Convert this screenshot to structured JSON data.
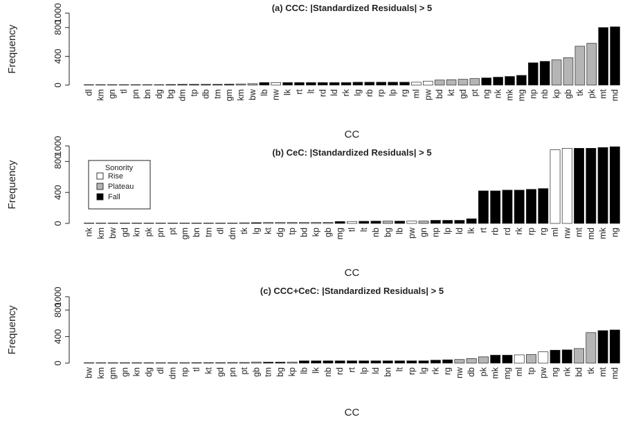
{
  "colors": {
    "Rise": "#ffffff",
    "Plateau": "#b5b5b5",
    "Fall": "#000000"
  },
  "legend": {
    "title": "Sonority",
    "entries": [
      "Rise",
      "Plateau",
      "Fall"
    ]
  },
  "chart_data": [
    {
      "type": "bar",
      "title": "(a) CCC: |Standardized Residuals| > 5",
      "xlabel": "CC",
      "ylabel": "Frequency",
      "ylim": [
        0,
        1000
      ],
      "yticks": [
        0,
        400,
        800,
        1000
      ],
      "grid": false,
      "categories": [
        "dl",
        "km",
        "gn",
        "tl",
        "pn",
        "bn",
        "dg",
        "bg",
        "dm",
        "tp",
        "db",
        "tm",
        "gm",
        "km",
        "bw",
        "lb",
        "nw",
        "lk",
        "rt",
        "lt",
        "rd",
        "ld",
        "rk",
        "lg",
        "rb",
        "rp",
        "lp",
        "rg",
        "ml",
        "pw",
        "bd",
        "kt",
        "gd",
        "pt",
        "ng",
        "nk",
        "mk",
        "mg",
        "np",
        "nb",
        "kp",
        "gb",
        "tk",
        "pk",
        "mt",
        "md"
      ],
      "sonority": [
        "Plateau",
        "Plateau",
        "Plateau",
        "Plateau",
        "Plateau",
        "Plateau",
        "Plateau",
        "Fall",
        "Fall",
        "Fall",
        "Fall",
        "Fall",
        "Fall",
        "Plateau",
        "Plateau",
        "Fall",
        "Rise",
        "Fall",
        "Fall",
        "Fall",
        "Fall",
        "Fall",
        "Fall",
        "Fall",
        "Fall",
        "Fall",
        "Fall",
        "Fall",
        "Rise",
        "Rise",
        "Plateau",
        "Plateau",
        "Plateau",
        "Plateau",
        "Fall",
        "Fall",
        "Fall",
        "Fall",
        "Fall",
        "Fall",
        "Plateau",
        "Plateau",
        "Plateau",
        "Plateau",
        "Fall",
        "Fall"
      ],
      "values": [
        1,
        1,
        1,
        1,
        1,
        1,
        2,
        8,
        10,
        10,
        10,
        10,
        12,
        15,
        20,
        35,
        35,
        35,
        35,
        35,
        35,
        35,
        35,
        40,
        40,
        40,
        40,
        40,
        40,
        55,
        70,
        75,
        80,
        90,
        100,
        110,
        120,
        135,
        310,
        330,
        350,
        380,
        540,
        580,
        800,
        810
      ]
    },
    {
      "type": "bar",
      "title": "(b) CeC: |Standardized Residuals| > 5",
      "xlabel": "CC",
      "ylabel": "Frequency",
      "ylim": [
        0,
        1000
      ],
      "yticks": [
        0,
        400,
        800,
        1000
      ],
      "grid": false,
      "legend_position": "top-left",
      "categories": [
        "nk",
        "km",
        "bw",
        "gd",
        "kn",
        "pk",
        "pn",
        "pt",
        "gm",
        "bn",
        "tm",
        "dl",
        "dm",
        "tk",
        "lg",
        "kt",
        "dg",
        "tp",
        "bd",
        "kp",
        "gb",
        "mg",
        "tl",
        "lt",
        "nb",
        "bg",
        "lb",
        "pw",
        "gn",
        "np",
        "lp",
        "ld",
        "lk",
        "rt",
        "rb",
        "rd",
        "rk",
        "rp",
        "rg",
        "ml",
        "nw",
        "mt",
        "md",
        "mk",
        "ng"
      ],
      "sonority": [
        "Plateau",
        "Plateau",
        "Plateau",
        "Plateau",
        "Plateau",
        "Plateau",
        "Plateau",
        "Plateau",
        "Plateau",
        "Plateau",
        "Fall",
        "Fall",
        "Fall",
        "Plateau",
        "Fall",
        "Plateau",
        "Plateau",
        "Plateau",
        "Plateau",
        "Plateau",
        "Plateau",
        "Fall",
        "Rise",
        "Fall",
        "Fall",
        "Plateau",
        "Fall",
        "Rise",
        "Plateau",
        "Fall",
        "Fall",
        "Fall",
        "Fall",
        "Fall",
        "Fall",
        "Fall",
        "Fall",
        "Fall",
        "Fall",
        "Rise",
        "Rise",
        "Fall",
        "Fall",
        "Fall",
        "Fall"
      ],
      "values": [
        1,
        1,
        1,
        1,
        1,
        1,
        1,
        1,
        1,
        2,
        2,
        2,
        5,
        8,
        10,
        12,
        12,
        12,
        12,
        12,
        14,
        25,
        25,
        28,
        30,
        30,
        30,
        30,
        30,
        40,
        40,
        40,
        60,
        420,
        420,
        430,
        430,
        440,
        450,
        950,
        970,
        970,
        970,
        980,
        990
      ]
    },
    {
      "type": "bar",
      "title": "(c) CCC+CeC: |Standardized Residuals| > 5",
      "xlabel": "CC",
      "ylabel": "Frequency",
      "ylim": [
        0,
        1000
      ],
      "yticks": [
        0,
        400,
        800,
        1000
      ],
      "grid": false,
      "categories": [
        "bw",
        "km",
        "gm",
        "gn",
        "kn",
        "dg",
        "dl",
        "dm",
        "np",
        "tl",
        "kt",
        "gd",
        "pn",
        "pt",
        "gb",
        "tm",
        "bg",
        "kp",
        "lb",
        "lk",
        "nb",
        "rd",
        "rt",
        "lp",
        "ld",
        "bn",
        "lt",
        "rp",
        "lg",
        "rk",
        "rg",
        "nw",
        "db",
        "pk",
        "mk",
        "mg",
        "ml",
        "tp",
        "pw",
        "ng",
        "nk",
        "bd",
        "tk",
        "mt",
        "md"
      ],
      "sonority": [
        "Plateau",
        "Plateau",
        "Plateau",
        "Plateau",
        "Plateau",
        "Plateau",
        "Plateau",
        "Fall",
        "Fall",
        "Plateau",
        "Plateau",
        "Plateau",
        "Plateau",
        "Plateau",
        "Plateau",
        "Fall",
        "Fall",
        "Plateau",
        "Fall",
        "Fall",
        "Fall",
        "Fall",
        "Fall",
        "Fall",
        "Fall",
        "Fall",
        "Fall",
        "Fall",
        "Fall",
        "Fall",
        "Fall",
        "Plateau",
        "Plateau",
        "Plateau",
        "Fall",
        "Fall",
        "Rise",
        "Plateau",
        "Rise",
        "Fall",
        "Fall",
        "Plateau",
        "Plateau",
        "Fall",
        "Fall"
      ],
      "values": [
        1,
        1,
        5,
        5,
        5,
        5,
        5,
        5,
        5,
        8,
        8,
        8,
        10,
        10,
        15,
        15,
        15,
        15,
        35,
        35,
        35,
        35,
        35,
        35,
        35,
        35,
        35,
        35,
        35,
        45,
        50,
        55,
        70,
        95,
        120,
        120,
        125,
        130,
        170,
        195,
        200,
        220,
        460,
        490,
        500
      ]
    }
  ]
}
